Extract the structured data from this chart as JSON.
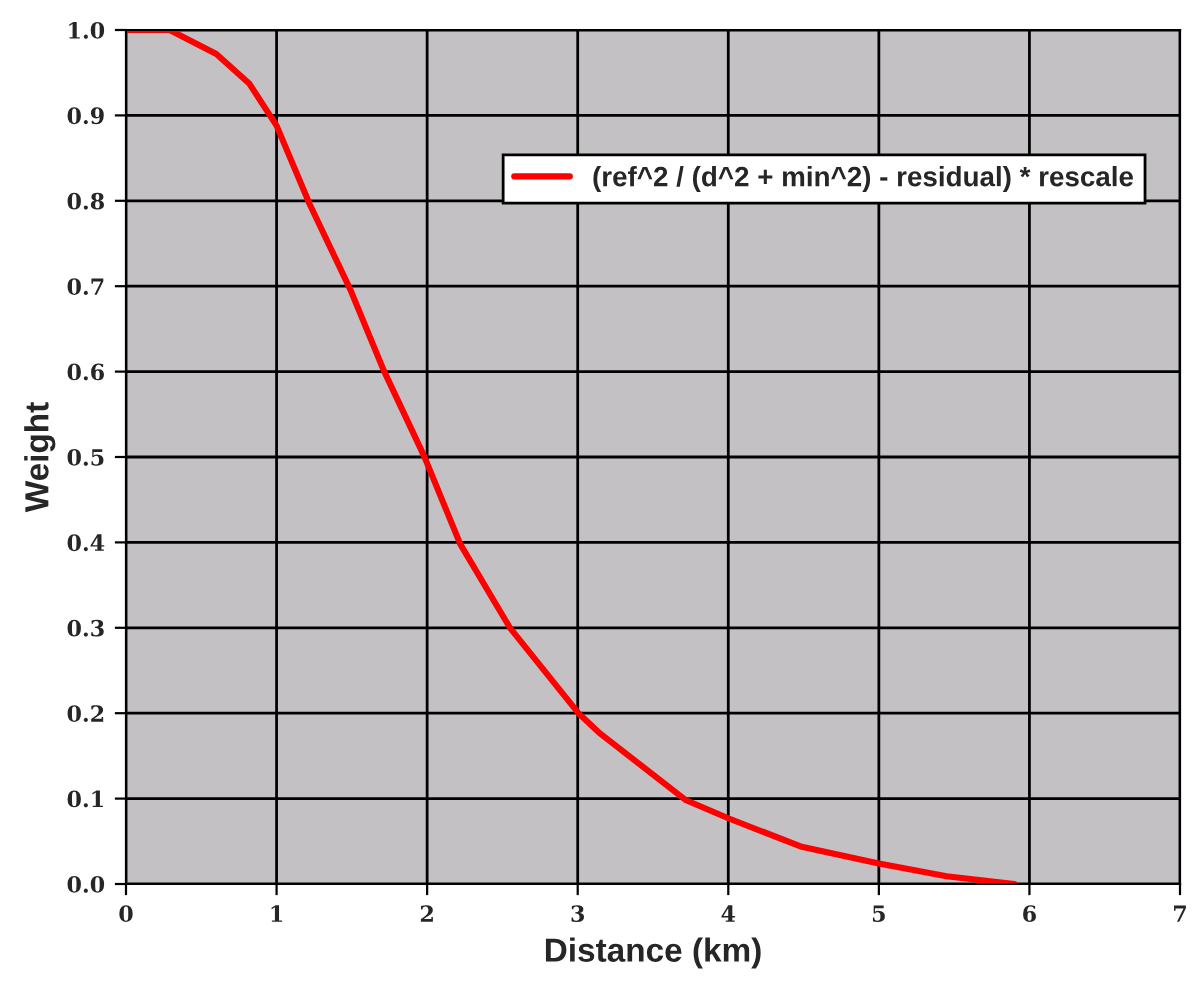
{
  "chart_data": {
    "type": "line",
    "xlabel": "Distance (km)",
    "ylabel": "Weight",
    "series": [
      {
        "name": "(ref^2 / (d^2 + min^2) - residual) * rescale",
        "color": "#ff0000",
        "x": [
          0,
          0.29,
          0.6,
          0.82,
          1.0,
          1.22,
          1.49,
          1.71,
          1.98,
          2.22,
          2.55,
          3.01,
          3.15,
          3.72,
          4.0,
          4.48,
          5.0,
          5.45,
          5.9
        ],
        "values": [
          1.0,
          1.0,
          0.972,
          0.937,
          0.888,
          0.796,
          0.696,
          0.602,
          0.501,
          0.398,
          0.3,
          0.199,
          0.176,
          0.098,
          0.077,
          0.044,
          0.024,
          0.009,
          0.0
        ]
      }
    ],
    "xlim": [
      0,
      7
    ],
    "xticks": [
      0,
      1,
      2,
      3,
      4,
      5,
      6,
      7
    ],
    "ylim": [
      0,
      1
    ],
    "yticks": [
      {
        "value": 0,
        "label": "0.0"
      },
      {
        "value": 0.1,
        "label": "0.1"
      },
      {
        "value": 0.2,
        "label": "0.2"
      },
      {
        "value": 0.3,
        "label": "0.3"
      },
      {
        "value": 0.4,
        "label": "0.4"
      },
      {
        "value": 0.5,
        "label": "0.5"
      },
      {
        "value": 0.6,
        "label": "0.6"
      },
      {
        "value": 0.7,
        "label": "0.7"
      },
      {
        "value": 0.8,
        "label": "0.8"
      },
      {
        "value": 0.9,
        "label": "0.9"
      },
      {
        "value": 1,
        "label": "1.0"
      }
    ],
    "grid": true,
    "legend": "top right",
    "marker": "none",
    "line_style": "solid"
  }
}
